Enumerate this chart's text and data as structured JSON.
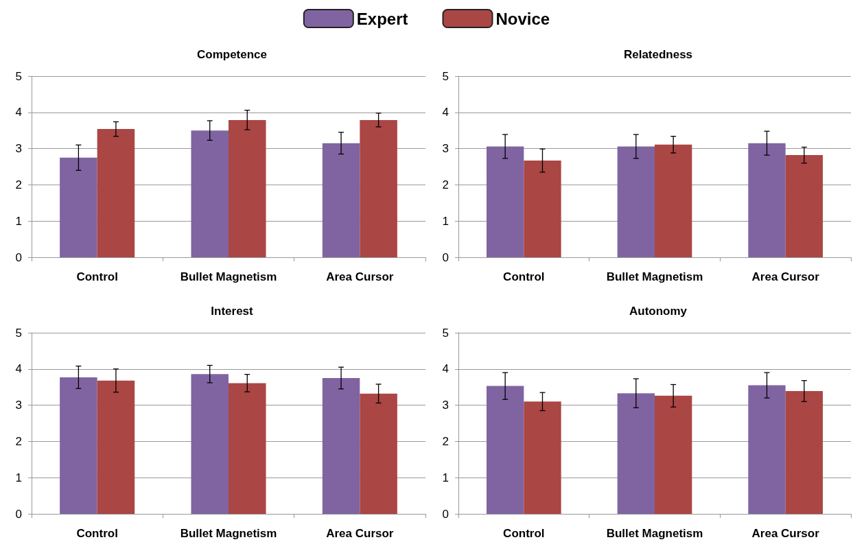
{
  "chart_data": [
    {
      "type": "bar",
      "title": "Competence",
      "categories": [
        "Control",
        "Bullet Magnetism",
        "Area Cursor"
      ],
      "legend": "top",
      "grid": "y",
      "ylim": [
        0,
        5
      ],
      "yticks": [
        0,
        1,
        2,
        3,
        4,
        5
      ],
      "series": [
        {
          "name": "Expert",
          "color": "#8064a2",
          "values": [
            2.75,
            3.5,
            3.15
          ],
          "errors": [
            0.35,
            0.27,
            0.3
          ]
        },
        {
          "name": "Novice",
          "color": "#aa4644",
          "values": [
            3.54,
            3.79,
            3.79
          ],
          "errors": [
            0.2,
            0.27,
            0.19
          ]
        }
      ]
    },
    {
      "type": "bar",
      "title": "Relatedness",
      "categories": [
        "Control",
        "Bullet Magnetism",
        "Area Cursor"
      ],
      "grid": "y",
      "ylim": [
        0,
        5
      ],
      "yticks": [
        0,
        1,
        2,
        3,
        4,
        5
      ],
      "series": [
        {
          "color": "#8064a2",
          "values": [
            3.06,
            3.06,
            3.15
          ],
          "errors": [
            0.33,
            0.33,
            0.33
          ]
        },
        {
          "color": "#aa4644",
          "values": [
            2.67,
            3.11,
            2.82
          ],
          "errors": [
            0.32,
            0.23,
            0.22
          ]
        }
      ]
    },
    {
      "type": "bar",
      "title": "Interest",
      "categories": [
        "Control",
        "Bullet Magnetism",
        "Area Cursor"
      ],
      "grid": "y",
      "ylim": [
        0,
        5
      ],
      "yticks": [
        0,
        1,
        2,
        3,
        4,
        5
      ],
      "series": [
        {
          "color": "#8064a2",
          "values": [
            3.77,
            3.86,
            3.75
          ],
          "errors": [
            0.31,
            0.24,
            0.3
          ]
        },
        {
          "color": "#aa4644",
          "values": [
            3.68,
            3.61,
            3.32
          ],
          "errors": [
            0.32,
            0.24,
            0.26
          ]
        }
      ]
    },
    {
      "type": "bar",
      "title": "Autonomy",
      "categories": [
        "Control",
        "Bullet Magnetism",
        "Area Cursor"
      ],
      "grid": "y",
      "ylim": [
        0,
        5
      ],
      "yticks": [
        0,
        1,
        2,
        3,
        4,
        5
      ],
      "series": [
        {
          "color": "#8064a2",
          "values": [
            3.53,
            3.33,
            3.55
          ],
          "errors": [
            0.37,
            0.4,
            0.35
          ]
        },
        {
          "color": "#aa4644",
          "values": [
            3.1,
            3.26,
            3.39
          ],
          "errors": [
            0.25,
            0.31,
            0.29
          ]
        }
      ]
    }
  ]
}
